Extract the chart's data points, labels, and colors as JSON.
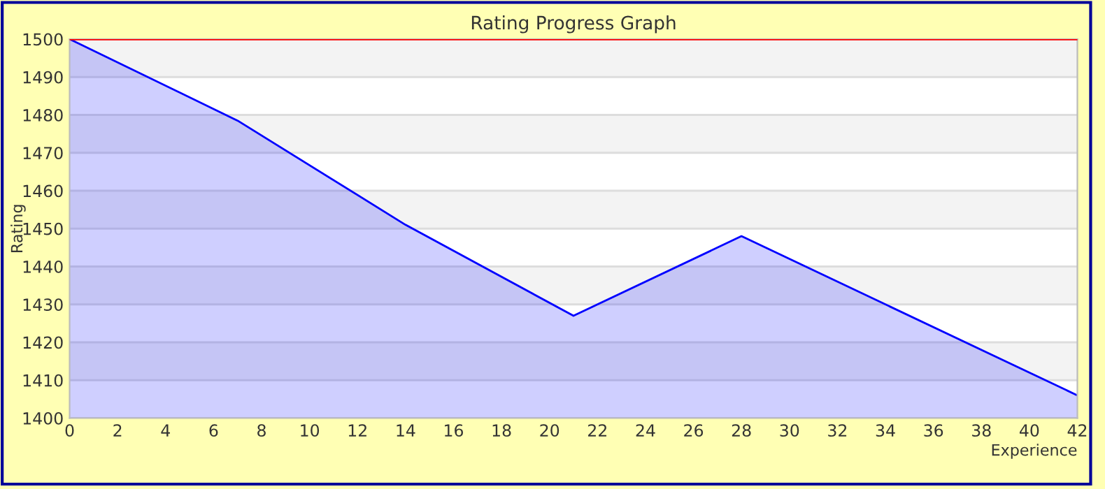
{
  "chart_data": {
    "type": "area",
    "title": "Rating Progress Graph",
    "xlabel": "Experience",
    "ylabel": "Rating",
    "x": [
      0,
      7,
      14,
      21,
      28,
      42
    ],
    "series": [
      {
        "color": "#0000ff",
        "values": [
          1500,
          1478.5,
          1451,
          1427,
          1448,
          1406
        ]
      }
    ],
    "xlim": [
      0,
      42
    ],
    "xticks": [
      0,
      2,
      4,
      6,
      8,
      10,
      12,
      14,
      16,
      18,
      20,
      22,
      24,
      26,
      28,
      30,
      32,
      34,
      36,
      38,
      40,
      42
    ],
    "ylim": [
      1400,
      1500
    ],
    "yticks": [
      1400,
      1410,
      1420,
      1430,
      1440,
      1450,
      1460,
      1470,
      1480,
      1490,
      1500
    ],
    "grid": "y",
    "ref_lines": [
      {
        "axis": "y",
        "value": 1500,
        "color": "#ff0000"
      }
    ]
  }
}
